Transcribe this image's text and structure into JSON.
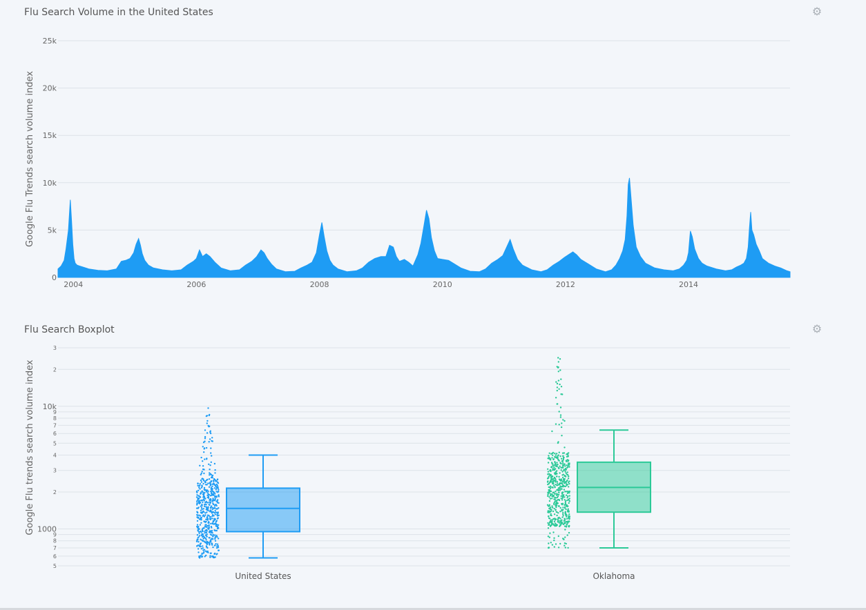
{
  "gear_icon": "gear-icon",
  "colors": {
    "us": "#1e9cf4",
    "ok": "#2bc997",
    "grid": "#dde2e8",
    "bg": "#f3f6fa"
  },
  "chart_data": [
    {
      "type": "area",
      "title": "Flu Search Volume in the United States",
      "ylabel": "Google Flu Trends search volume index",
      "xlabel": "",
      "ylim": [
        0,
        25000
      ],
      "yticks": [
        0,
        5000,
        10000,
        15000,
        20000,
        25000
      ],
      "ytick_labels": [
        "0",
        "5k",
        "10k",
        "15k",
        "20k",
        "25k"
      ],
      "xlim": [
        2003.75,
        2015.65
      ],
      "xticks": [
        2004,
        2006,
        2008,
        2010,
        2012,
        2014
      ],
      "xtick_labels": [
        "2004",
        "2006",
        "2008",
        "2010",
        "2012",
        "2014"
      ],
      "grid": true,
      "series": [
        {
          "color": "#1e9cf4",
          "x": [
            2003.75,
            2003.8,
            2003.85,
            2003.88,
            2003.92,
            2003.95,
            2003.97,
            2003.99,
            2004.01,
            2004.03,
            2004.06,
            2004.1,
            2004.15,
            2004.25,
            2004.4,
            2004.55,
            2004.7,
            2004.78,
            2004.85,
            2004.92,
            2004.98,
            2005.02,
            2005.06,
            2005.09,
            2005.12,
            2005.16,
            2005.22,
            2005.3,
            2005.45,
            2005.6,
            2005.75,
            2005.85,
            2005.95,
            2006.0,
            2006.05,
            2006.1,
            2006.16,
            2006.22,
            2006.3,
            2006.4,
            2006.55,
            2006.7,
            2006.8,
            2006.9,
            2006.98,
            2007.05,
            2007.1,
            2007.15,
            2007.22,
            2007.3,
            2007.45,
            2007.6,
            2007.7,
            2007.8,
            2007.88,
            2007.95,
            2008.0,
            2008.04,
            2008.08,
            2008.12,
            2008.17,
            2008.22,
            2008.3,
            2008.45,
            2008.6,
            2008.7,
            2008.8,
            2008.9,
            2009.0,
            2009.08,
            2009.14,
            2009.2,
            2009.25,
            2009.3,
            2009.38,
            2009.45,
            2009.52,
            2009.6,
            2009.65,
            2009.7,
            2009.74,
            2009.78,
            2009.82,
            2009.87,
            2009.92,
            2010.0,
            2010.1,
            2010.2,
            2010.3,
            2010.45,
            2010.6,
            2010.7,
            2010.8,
            2010.9,
            2010.98,
            2011.05,
            2011.1,
            2011.15,
            2011.22,
            2011.3,
            2011.45,
            2011.6,
            2011.7,
            2011.8,
            2011.9,
            2011.98,
            2012.05,
            2012.12,
            2012.18,
            2012.25,
            2012.35,
            2012.5,
            2012.65,
            2012.75,
            2012.82,
            2012.88,
            2012.93,
            2012.97,
            2013.0,
            2013.02,
            2013.04,
            2013.07,
            2013.1,
            2013.15,
            2013.22,
            2013.3,
            2013.45,
            2013.6,
            2013.75,
            2013.85,
            2013.92,
            2013.97,
            2014.0,
            2014.03,
            2014.06,
            2014.1,
            2014.16,
            2014.22,
            2014.3,
            2014.45,
            2014.6,
            2014.7,
            2014.78,
            2014.85,
            2014.9,
            2014.94,
            2014.97,
            2014.99,
            2015.01,
            2015.03,
            2015.06,
            2015.1,
            2015.15,
            2015.2,
            2015.3,
            2015.4,
            2015.5,
            2015.6,
            2015.65
          ],
          "y": [
            900,
            1200,
            1800,
            3000,
            5000,
            8200,
            6000,
            3500,
            2000,
            1500,
            1300,
            1200,
            1100,
            900,
            750,
            700,
            900,
            1700,
            1800,
            2000,
            2600,
            3500,
            4100,
            3400,
            2500,
            1800,
            1300,
            1000,
            800,
            700,
            800,
            1300,
            1700,
            2000,
            2900,
            2200,
            2500,
            2200,
            1600,
            1000,
            700,
            800,
            1300,
            1700,
            2200,
            2900,
            2600,
            2000,
            1400,
            900,
            600,
            650,
            1000,
            1300,
            1600,
            2600,
            4500,
            5800,
            4200,
            2800,
            1800,
            1300,
            900,
            600,
            700,
            1000,
            1600,
            2000,
            2200,
            2200,
            3400,
            3200,
            2200,
            1700,
            1900,
            1600,
            1200,
            2400,
            3600,
            5500,
            7100,
            6200,
            4200,
            2800,
            2000,
            1900,
            1800,
            1400,
            1000,
            650,
            600,
            900,
            1500,
            1900,
            2300,
            3300,
            4000,
            3000,
            1900,
            1300,
            800,
            600,
            800,
            1300,
            1700,
            2100,
            2400,
            2700,
            2400,
            1900,
            1500,
            900,
            600,
            800,
            1300,
            2000,
            2800,
            4000,
            6500,
            9800,
            10500,
            8000,
            5500,
            3200,
            2200,
            1500,
            1000,
            800,
            700,
            900,
            1300,
            1800,
            2600,
            4900,
            4300,
            3000,
            2000,
            1500,
            1200,
            900,
            700,
            800,
            1100,
            1300,
            1500,
            2000,
            3200,
            5200,
            6900,
            5000,
            4500,
            3500,
            2800,
            2000,
            1500,
            1200,
            1000,
            700,
            600
          ]
        }
      ]
    },
    {
      "type": "box",
      "title": "Flu Search Boxplot",
      "ylabel": "Google Flu trends search volume index",
      "xlabel": "",
      "yscale": "log",
      "ylim": [
        500,
        30000
      ],
      "ytick_labels": [
        "5",
        "6",
        "7",
        "8",
        "9",
        "1000",
        "2",
        "3",
        "4",
        "5",
        "6",
        "7",
        "8",
        "9",
        "10k",
        "2",
        "3"
      ],
      "categories": [
        "United States",
        "Oklahoma"
      ],
      "grid": true,
      "series": [
        {
          "name": "United States",
          "color": "#1e9cf4",
          "min": 580,
          "q1": 950,
          "median": 1470,
          "q3": 2150,
          "max": 4000,
          "points_min": 580,
          "points_max": 10200
        },
        {
          "name": "Oklahoma",
          "color": "#2bc997",
          "min": 700,
          "q1": 1370,
          "median": 2180,
          "q3": 3500,
          "max": 6400,
          "points_min": 700,
          "points_max": 25000
        }
      ]
    }
  ]
}
